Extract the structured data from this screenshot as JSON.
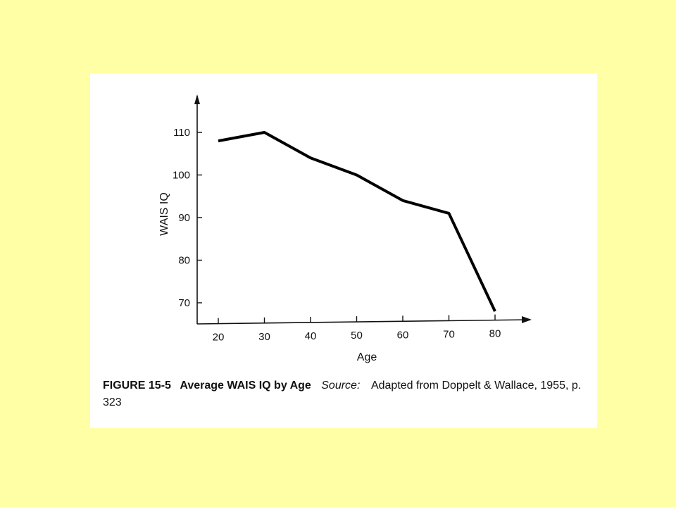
{
  "chart_data": {
    "type": "line",
    "x": [
      20,
      30,
      40,
      50,
      60,
      70,
      80
    ],
    "values": [
      108,
      110,
      104,
      100,
      94,
      91,
      68
    ],
    "xlabel": "Age",
    "ylabel": "WAIS IQ",
    "x_ticks": [
      20,
      30,
      40,
      50,
      60,
      70,
      80
    ],
    "y_ticks": [
      70,
      80,
      90,
      100,
      110
    ],
    "ylim": [
      65,
      118
    ],
    "xlim": [
      17,
      90
    ],
    "grid": false,
    "line_color": "#000000"
  },
  "caption": {
    "figure_number": "FIGURE 15-5",
    "title": "Average WAIS IQ by Age",
    "source_label": "Source:",
    "source_text": "Adapted from Doppelt & Wallace, 1955, p. 323"
  },
  "colors": {
    "background": "#FFFFA5",
    "panel": "#FFFFFF"
  }
}
